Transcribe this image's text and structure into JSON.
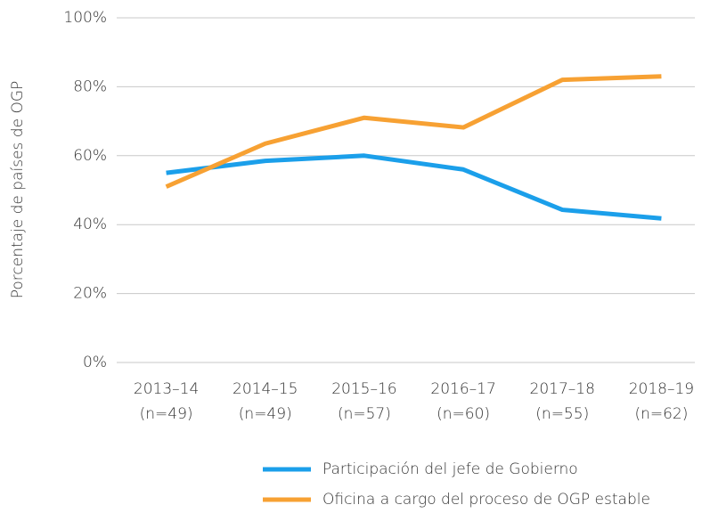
{
  "chart_data": {
    "type": "line",
    "ylabel": "Porcentaje de países de OGP",
    "categories": [
      [
        "2013–14",
        "(n=49)"
      ],
      [
        "2014–15",
        "(n=49)"
      ],
      [
        "2015–16",
        "(n=57)"
      ],
      [
        "2016–17",
        "(n=60)"
      ],
      [
        "2017–18",
        "(n=55)"
      ],
      [
        "2018–19",
        "(n=62)"
      ]
    ],
    "series": [
      {
        "name": "Participación del jefe de Gobierno",
        "color": "#1b9fea",
        "values": [
          55,
          58.5,
          60,
          56,
          44.3,
          41.8
        ]
      },
      {
        "name": "Oficina a cargo del proceso de OGP estable",
        "color": "#f7a133",
        "values": [
          51,
          63.5,
          71,
          68.2,
          82,
          83
        ]
      }
    ],
    "ylim": [
      0,
      100
    ],
    "yticks": [
      {
        "value": 0,
        "label": "0%"
      },
      {
        "value": 20,
        "label": "20%"
      },
      {
        "value": 40,
        "label": "40%"
      },
      {
        "value": 60,
        "label": "60%"
      },
      {
        "value": 80,
        "label": "80%"
      },
      {
        "value": 100,
        "label": "100%"
      }
    ],
    "grid": true,
    "legend": "bottom"
  }
}
